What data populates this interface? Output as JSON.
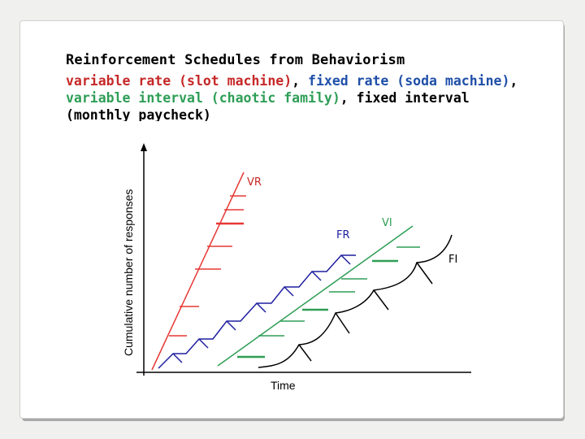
{
  "slide": {
    "title": "Reinforcement Schedules from Behaviorism",
    "subtitle_parts": [
      {
        "text": "variable rate (slot machine)",
        "color": "#c62828"
      },
      {
        "text": ", ",
        "color": "#000000"
      },
      {
        "text": "fixed rate (soda machine)",
        "color": "#1f4fa8"
      },
      {
        "text": ", ",
        "color": "#000000"
      },
      {
        "text": "variable interval (chaotic family)",
        "color": "#2e9e56"
      },
      {
        "text": ", fixed interval (monthly paycheck)",
        "color": "#000000"
      }
    ]
  },
  "diagram": {
    "x_axis_label": "Time",
    "y_axis_label": "Cumulative number of responses",
    "curves": [
      {
        "id": "vr",
        "label": "VR",
        "color": "#e53935"
      },
      {
        "id": "fr",
        "label": "FR",
        "color": "#1f1fa0"
      },
      {
        "id": "vi",
        "label": "VI",
        "color": "#2e9e56"
      },
      {
        "id": "fi",
        "label": "FI",
        "color": "#000000"
      }
    ]
  }
}
